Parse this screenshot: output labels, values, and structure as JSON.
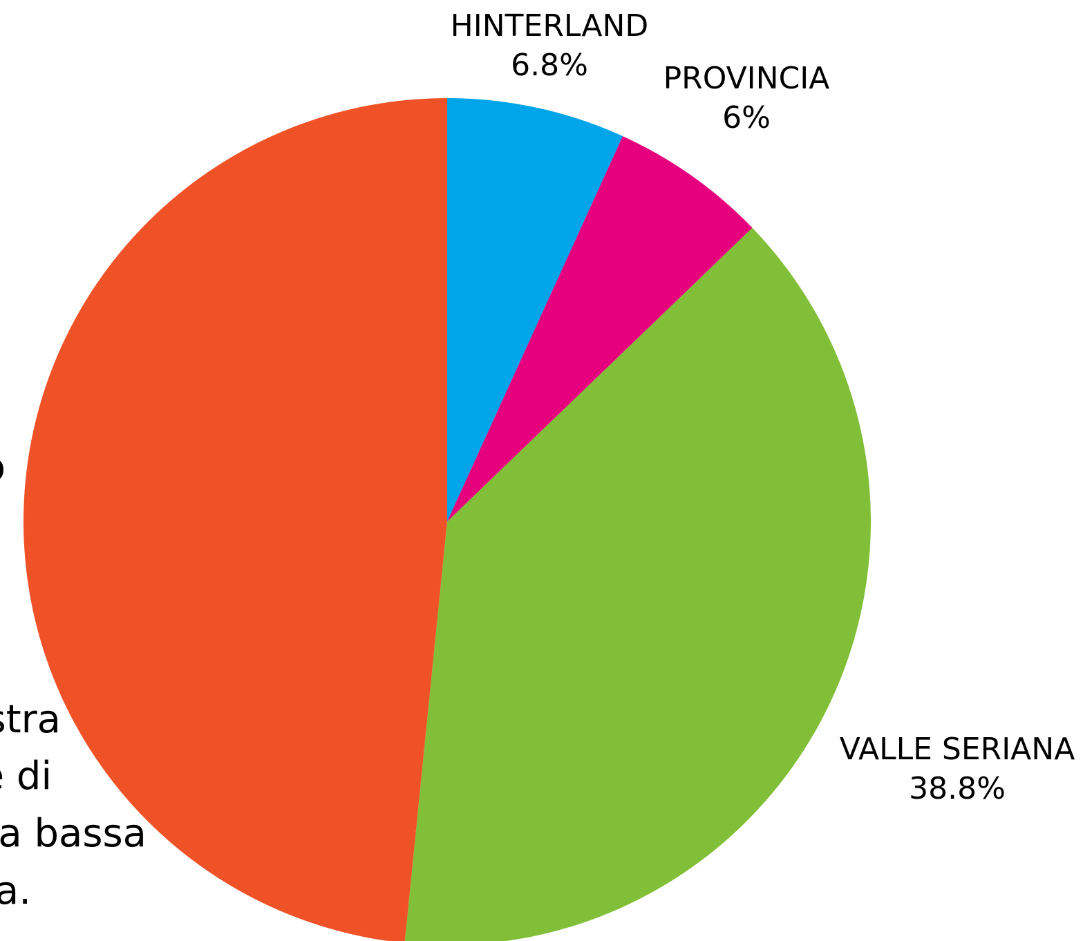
{
  "chart_data": {
    "type": "pie",
    "categories": [
      "HINTERLAND",
      "PROVINCIA",
      "VALLE SERIANA",
      null
    ],
    "values": [
      6.8,
      6,
      38.8,
      48.4
    ],
    "value_labels": [
      "6.8%",
      "6%",
      "38.8%",
      null
    ],
    "colors": [
      "#00a4e8",
      "#e6007e",
      "#82bf38",
      "#f05228"
    ],
    "annotations": [
      "o",
      "stra",
      "e di",
      "a bassa",
      "a."
    ]
  }
}
